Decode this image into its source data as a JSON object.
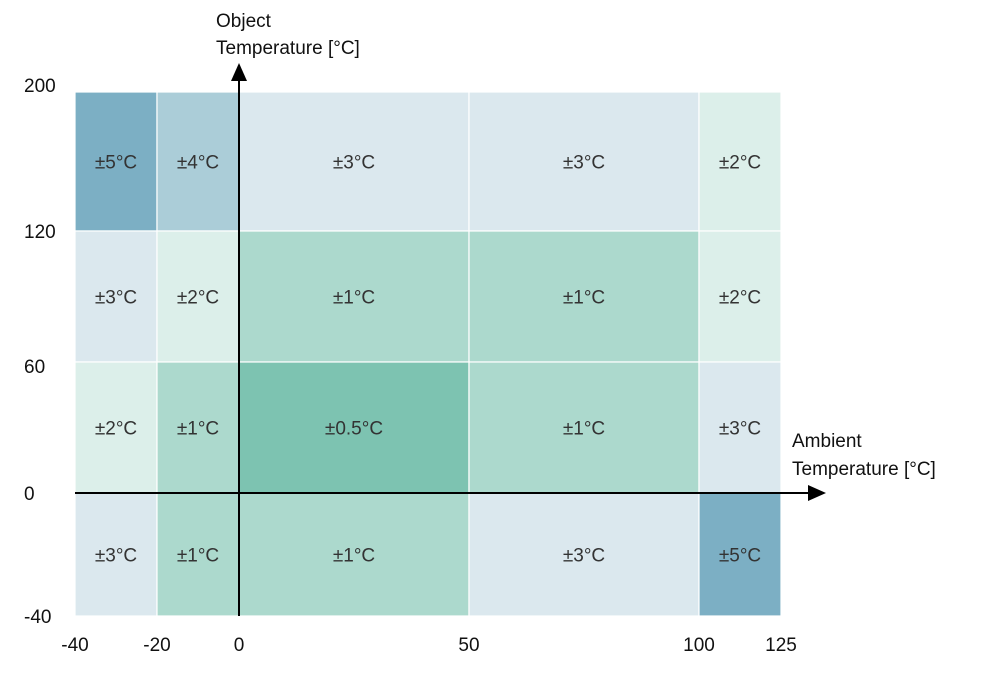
{
  "chart_data": {
    "type": "heatmap",
    "title": "",
    "xlabel_lines": [
      "Ambient",
      "Temperature [°C]"
    ],
    "ylabel_lines": [
      "Object",
      "Temperature [°C]"
    ],
    "x_edges": [
      -40,
      -20,
      0,
      50,
      100,
      125
    ],
    "y_edges": [
      -40,
      0,
      60,
      120,
      200
    ],
    "x_tick_labels": [
      "-40",
      "-20",
      "0",
      "50",
      "100",
      "125"
    ],
    "y_tick_labels": [
      "-40",
      "0",
      "60",
      "120",
      "200"
    ],
    "cells_by_row_top_to_bottom": [
      [
        "±5°C",
        "±4°C",
        "±3°C",
        "±3°C",
        "±2°C"
      ],
      [
        "±3°C",
        "±2°C",
        "±1°C",
        "±1°C",
        "±2°C"
      ],
      [
        "±2°C",
        "±1°C",
        "±0.5°C",
        "±1°C",
        "±3°C"
      ],
      [
        "±3°C",
        "±1°C",
        "±1°C",
        "±3°C",
        "±5°C"
      ]
    ],
    "accuracy_colors": {
      "±0.5°C": "#7dc3b1",
      "±1°C": "#acd9cd",
      "±2°C": "#dcefea",
      "±3°C": "#dbe8ee",
      "±4°C": "#abcdd8",
      "±5°C": "#7cafc4"
    },
    "axis_color": "#000000"
  }
}
